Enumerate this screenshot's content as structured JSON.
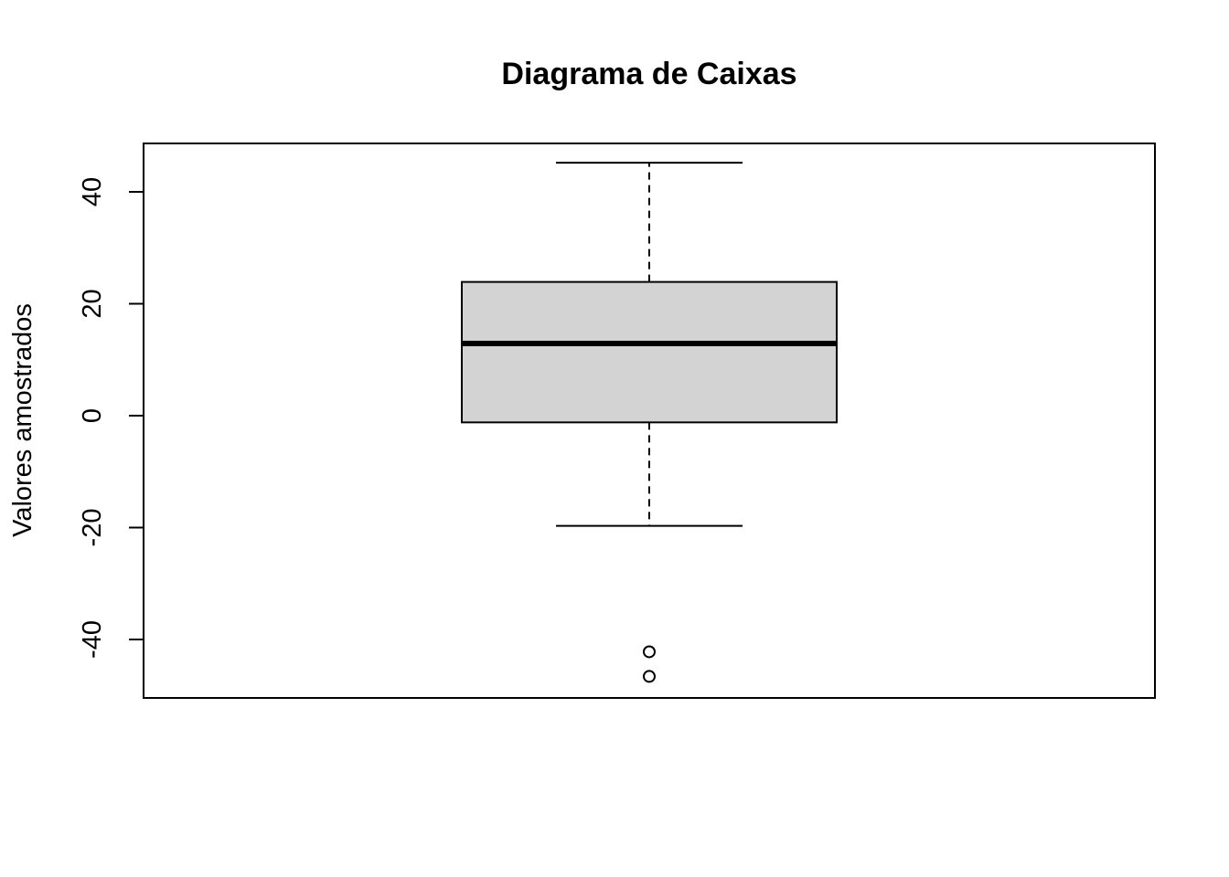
{
  "chart_data": {
    "type": "box",
    "title": "Diagrama de Caixas",
    "xlabel": "",
    "ylabel": "Valores amostrados",
    "yticks": [
      -40,
      -20,
      0,
      20,
      40
    ],
    "ytick_labels": [
      "-40",
      "-20",
      "0",
      "20",
      "40"
    ],
    "ylim": [
      -50,
      49
    ],
    "grid": false,
    "box": {
      "whisker_low": -19.7,
      "q1": -1.2,
      "median": 12.9,
      "q3": 23.9,
      "whisker_high": 45.2,
      "outliers": [
        -42.2,
        -46.6
      ]
    },
    "colors": {
      "box_fill": "#d3d3d3",
      "stroke": "#000000"
    }
  }
}
